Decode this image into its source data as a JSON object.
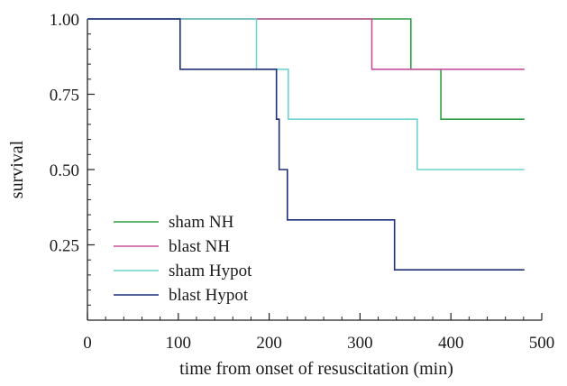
{
  "chart_data": {
    "type": "line",
    "step": true,
    "xlabel": "time from onset of resuscitation (min)",
    "ylabel": "survival",
    "xlim": [
      0,
      500
    ],
    "ylim": [
      0,
      1.0
    ],
    "x_ticks": [
      0,
      100,
      200,
      300,
      400,
      500
    ],
    "x_tick_labels": [
      "0",
      "100",
      "200",
      "300",
      "400",
      "500"
    ],
    "y_ticks": [
      0.25,
      0.5,
      0.75,
      1.0
    ],
    "y_tick_labels": [
      "0.25",
      "0.50",
      "0.75",
      "1.00"
    ],
    "grid": false,
    "legend_position": "lower-left",
    "series": [
      {
        "name": "sham NH",
        "color": "#2e9e44",
        "points": [
          [
            0,
            1.0
          ],
          [
            356,
            1.0
          ],
          [
            356,
            0.833
          ],
          [
            389,
            0.833
          ],
          [
            389,
            0.667
          ],
          [
            481,
            0.667
          ]
        ]
      },
      {
        "name": "blast NH",
        "color": "#c8509a",
        "points": [
          [
            0,
            1.0
          ],
          [
            313,
            1.0
          ],
          [
            313,
            0.833
          ],
          [
            481,
            0.833
          ]
        ]
      },
      {
        "name": "sham Hypot",
        "color": "#6fd3cf",
        "points": [
          [
            0,
            1.0
          ],
          [
            186,
            1.0
          ],
          [
            186,
            0.833
          ],
          [
            221,
            0.833
          ],
          [
            221,
            0.667
          ],
          [
            363,
            0.667
          ],
          [
            363,
            0.5
          ],
          [
            481,
            0.5
          ]
        ]
      },
      {
        "name": "blast Hypot",
        "color": "#1f2f7a",
        "points": [
          [
            0,
            1.0
          ],
          [
            102,
            1.0
          ],
          [
            102,
            0.833
          ],
          [
            208,
            0.833
          ],
          [
            208,
            0.667
          ],
          [
            211,
            0.667
          ],
          [
            211,
            0.5
          ],
          [
            220,
            0.5
          ],
          [
            220,
            0.333
          ],
          [
            338,
            0.333
          ],
          [
            338,
            0.167
          ],
          [
            481,
            0.167
          ]
        ]
      }
    ]
  }
}
